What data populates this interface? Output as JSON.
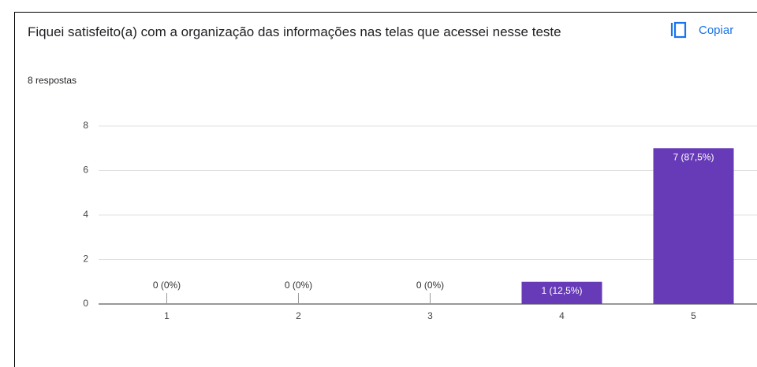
{
  "chart_data": {
    "type": "bar",
    "title": "Fiquei satisfeito(a) com a organização das informações nas telas que acessei nesse teste",
    "subtitle": "8 respostas",
    "button": "Copiar",
    "categories": [
      "1",
      "2",
      "3",
      "4",
      "5"
    ],
    "values": [
      0,
      0,
      0,
      1,
      7
    ],
    "value_labels": [
      "0 (0%)",
      "0 (0%)",
      "0 (0%)",
      "1 (12,5%)",
      "7 (87,5%)"
    ],
    "color": "#673ab7",
    "ylim": [
      0,
      8
    ],
    "yticks": [
      0,
      2,
      4,
      6,
      8
    ],
    "grid": true
  }
}
